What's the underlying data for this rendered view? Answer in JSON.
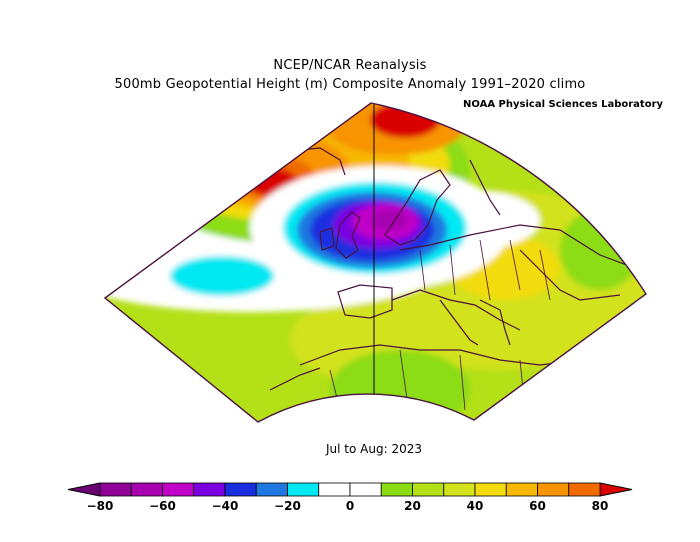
{
  "title": {
    "line1": "NCEP/NCAR Reanalysis",
    "line2": "500mb Geopotential Height (m) Composite Anomaly 1991–2020 climo"
  },
  "credit": "NOAA Physical Sciences Laboratory",
  "period": "Jul to Aug: 2023",
  "colorbar": {
    "bins": [
      {
        "from": -80,
        "to": -70,
        "color": "#8e0096"
      },
      {
        "from": -70,
        "to": -60,
        "color": "#a600b0"
      },
      {
        "from": -60,
        "to": -50,
        "color": "#c000c8"
      },
      {
        "from": -50,
        "to": -40,
        "color": "#7a00e0"
      },
      {
        "from": -40,
        "to": -30,
        "color": "#1a2ee0"
      },
      {
        "from": -30,
        "to": -20,
        "color": "#1e78e0"
      },
      {
        "from": -20,
        "to": -10,
        "color": "#00e8f2"
      },
      {
        "from": -10,
        "to": 0,
        "color": "#ffffff"
      },
      {
        "from": 0,
        "to": 10,
        "color": "#ffffff"
      },
      {
        "from": 10,
        "to": 20,
        "color": "#8cdc14"
      },
      {
        "from": 20,
        "to": 30,
        "color": "#b4e018"
      },
      {
        "from": 30,
        "to": 40,
        "color": "#d2e21c"
      },
      {
        "from": 40,
        "to": 50,
        "color": "#f2dc10"
      },
      {
        "from": 50,
        "to": 60,
        "color": "#f7b800"
      },
      {
        "from": 60,
        "to": 70,
        "color": "#f79400"
      },
      {
        "from": 70,
        "to": 80,
        "color": "#f06a00"
      }
    ],
    "below_color": "#6a0073",
    "above_color": "#d90000",
    "tick_labels": [
      "−80",
      "−60",
      "−40",
      "−20",
      "0",
      "20",
      "40",
      "60",
      "80"
    ]
  }
}
